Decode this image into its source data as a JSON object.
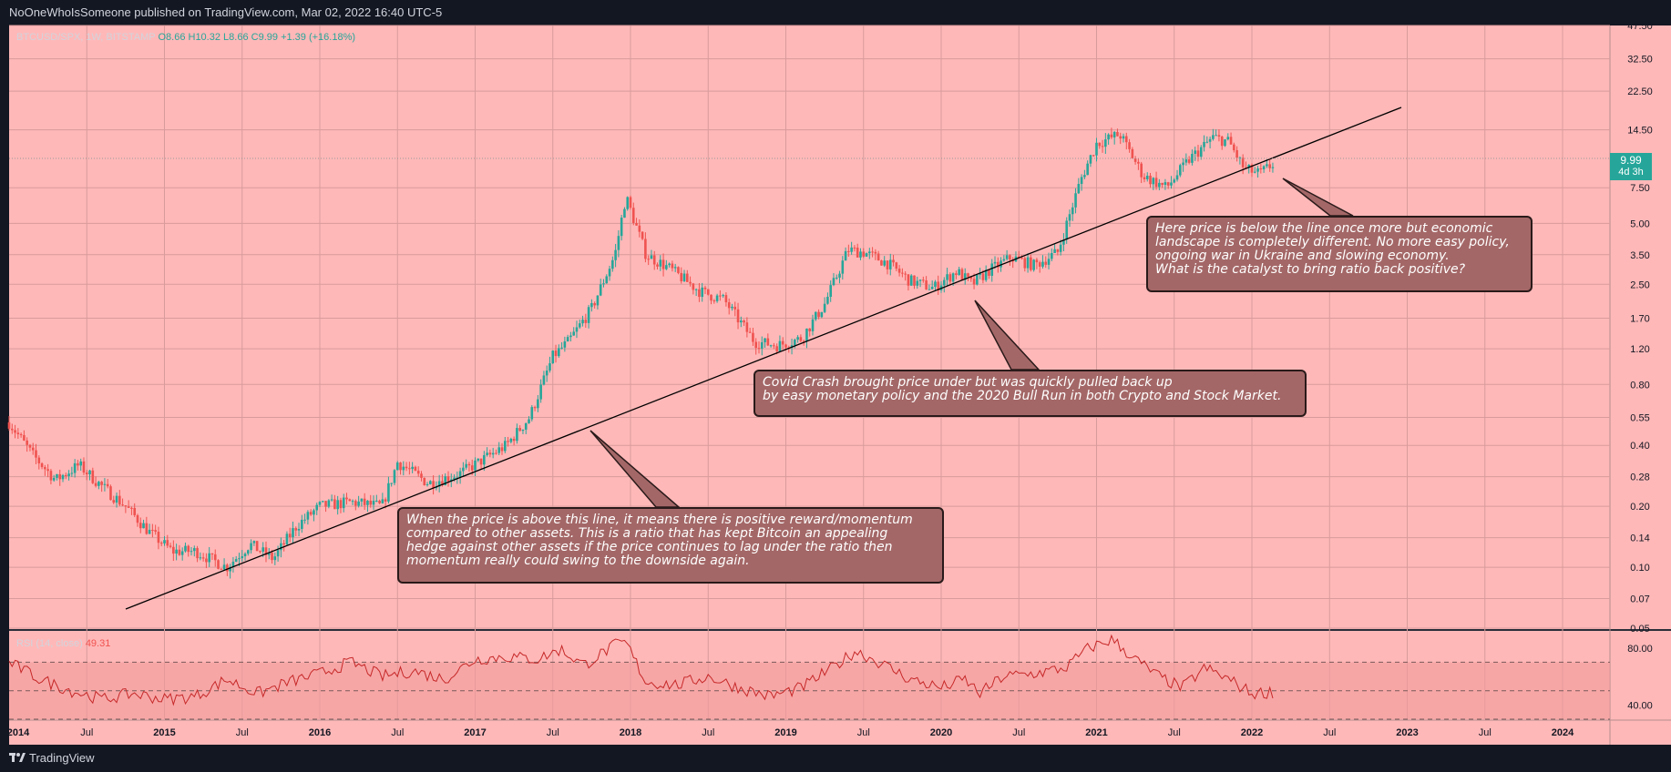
{
  "header": {
    "publish_line": "NoOneWhoIsSomeone published on TradingView.com, Mar 02, 2022 16:40 UTC-5"
  },
  "footer": {
    "brand": "TradingView",
    "logo_icon": "tradingview-logo-icon"
  },
  "legend": {
    "symbol": "BTCUSD/SPX, 1W, BITSTAMP",
    "open": "O8.66",
    "high": "H10.32",
    "low": "L8.66",
    "close": "C9.99",
    "change": "+1.39 (+16.18%)"
  },
  "last_price": {
    "value": "9.99",
    "countdown": "4d 3h"
  },
  "rsi_legend": {
    "label": "RSI (14, close)",
    "value": "49.31"
  },
  "callouts": [
    "When the price is above this line, it means there is positive reward/momentum\ncompared to other assets. This is a ratio that has kept Bitcoin an appealing\nhedge against other assets if the price continues to lag under the ratio then\nmomentum really could swing to the downside again.",
    "Covid Crash brought price under but was quickly pulled back up\n by easy monetary policy and the 2020 Bull Run in both Crypto and Stock Market.",
    "Here price is below the line once more but economic\nlandscape is completely different. No more easy policy,\nongoing war in Ukraine and slowing economy.\nWhat is the catalyst to bring ratio back positive?"
  ],
  "colors": {
    "background": "#131722",
    "pane": "#ffb8b8",
    "up": "#26a69a",
    "down": "#ef5350",
    "rsi_line": "#c62828",
    "rsi_band": "#f29a9a",
    "text_light": "#d1d4dc",
    "callout_fill": "#a46767"
  },
  "chart_data": [
    {
      "type": "line",
      "title": "BTCUSD/SPX, 1W, BITSTAMP",
      "yscale": "log",
      "ylim": [
        0.05,
        47.5
      ],
      "y_ticks": [
        "47.50",
        "32.50",
        "22.50",
        "14.50",
        "9.99",
        "7.50",
        "5.00",
        "3.50",
        "2.50",
        "1.70",
        "1.20",
        "0.80",
        "0.55",
        "0.40",
        "0.28",
        "0.20",
        "0.14",
        "0.10",
        "0.07",
        "0.05"
      ],
      "x_ticks": [
        "2014",
        "Jul",
        "2015",
        "Jul",
        "2016",
        "Jul",
        "2017",
        "Jul",
        "2018",
        "Jul",
        "2019",
        "Jul",
        "2020",
        "Jul",
        "2021",
        "Jul",
        "2022",
        "Jul",
        "2023",
        "Jul",
        "2024"
      ],
      "xlim": [
        2014.0,
        2024.5
      ],
      "series": [
        {
          "x": [
            2014.0,
            2014.15,
            2014.3,
            2014.45,
            2014.6,
            2014.75,
            2014.9,
            2015.05,
            2015.2,
            2015.4,
            2015.55,
            2015.7,
            2015.85,
            2016.0,
            2016.2,
            2016.4,
            2016.5,
            2016.7,
            2016.9,
            2017.05,
            2017.2,
            2017.35,
            2017.5,
            2017.6,
            2017.75,
            2017.9,
            2017.97,
            2018.1,
            2018.25,
            2018.45,
            2018.6,
            2018.8,
            2018.95,
            2019.1,
            2019.25,
            2019.4,
            2019.5,
            2019.65,
            2019.8,
            2019.95,
            2020.1,
            2020.2,
            2020.3,
            2020.45,
            2020.6,
            2020.75,
            2020.9,
            2021.0,
            2021.15,
            2021.3,
            2021.45,
            2021.6,
            2021.75,
            2021.85,
            2021.95,
            2022.05,
            2022.15
          ],
          "y": [
            0.52,
            0.36,
            0.27,
            0.32,
            0.25,
            0.2,
            0.15,
            0.12,
            0.12,
            0.1,
            0.13,
            0.11,
            0.16,
            0.2,
            0.21,
            0.2,
            0.33,
            0.26,
            0.29,
            0.34,
            0.4,
            0.55,
            1.1,
            1.3,
            1.9,
            3.5,
            6.8,
            3.5,
            3.0,
            2.3,
            2.1,
            1.3,
            1.25,
            1.35,
            2.0,
            3.7,
            3.6,
            3.2,
            2.6,
            2.4,
            2.9,
            2.5,
            2.9,
            3.4,
            3.1,
            3.6,
            8.3,
            12.4,
            13.8,
            8.6,
            7.5,
            10.4,
            13.3,
            12.7,
            9.3,
            8.8,
            9.99
          ]
        }
      ],
      "annotations": [
        "trendline"
      ]
    },
    {
      "type": "line",
      "title": "RSI (14, close)",
      "ylim": [
        30,
        92
      ],
      "y_ticks": [
        "80.00",
        "40.00"
      ],
      "levels": [
        70,
        50,
        30
      ],
      "series": [
        {
          "x": [
            2014.0,
            2014.2,
            2014.4,
            2014.6,
            2014.8,
            2015.0,
            2015.2,
            2015.4,
            2015.6,
            2015.8,
            2016.0,
            2016.2,
            2016.4,
            2016.6,
            2016.8,
            2017.0,
            2017.2,
            2017.4,
            2017.55,
            2017.7,
            2017.9,
            2017.97,
            2018.1,
            2018.3,
            2018.5,
            2018.7,
            2018.9,
            2019.1,
            2019.3,
            2019.45,
            2019.6,
            2019.8,
            2020.0,
            2020.15,
            2020.25,
            2020.4,
            2020.6,
            2020.8,
            2020.95,
            2021.1,
            2021.25,
            2021.4,
            2021.55,
            2021.7,
            2021.85,
            2022.0,
            2022.15
          ],
          "y": [
            70,
            58,
            50,
            44,
            48,
            44,
            46,
            58,
            48,
            56,
            62,
            70,
            60,
            64,
            58,
            72,
            74,
            72,
            79,
            68,
            82,
            84,
            56,
            54,
            60,
            52,
            46,
            52,
            66,
            78,
            70,
            58,
            52,
            58,
            48,
            60,
            62,
            66,
            80,
            86,
            72,
            60,
            52,
            66,
            58,
            48,
            49.31
          ]
        }
      ]
    }
  ]
}
